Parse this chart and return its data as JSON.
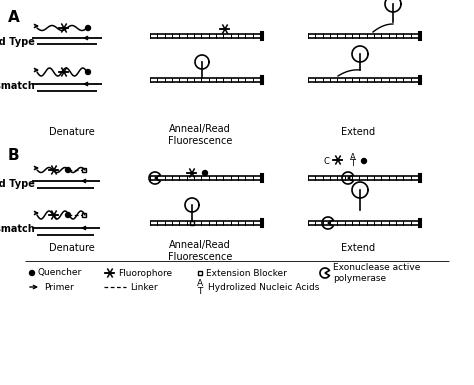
{
  "bg_color": "#ffffff",
  "title_A": "A",
  "title_B": "B",
  "label_wildtype": "Wild Type",
  "label_mismatch": "Mismatch",
  "label_denature": "Denature",
  "label_anneal": "Anneal/Read\nFluorescence",
  "label_extend": "Extend",
  "legend_quencher": "Quencher",
  "legend_fluorophore": "Fluorophore",
  "legend_ext_blocker": "Extension Blocker",
  "legend_exo": "Exonuclease active\npolymerase",
  "legend_primer": "Primer",
  "legend_linker": "Linker",
  "legend_hydrolized": "Hydrolized Nucleic Acids"
}
